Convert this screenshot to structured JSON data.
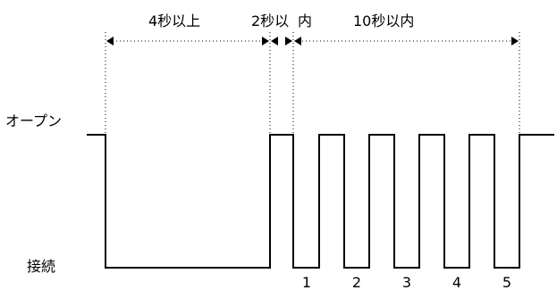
{
  "timing": {
    "durations": {
      "min_4s": "4秒以上",
      "within_2s": "2秒以",
      "within_10s_prefix": "内",
      "within_10s": "10秒以内"
    },
    "states": {
      "open": "オープン",
      "connected": "接続"
    },
    "pulse_numbers": [
      "1",
      "2",
      "3",
      "4",
      "5"
    ]
  }
}
